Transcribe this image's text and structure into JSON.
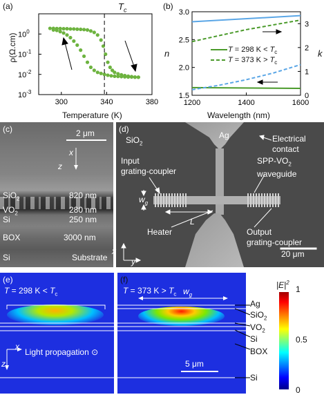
{
  "panel_a": {
    "letter": "(a)",
    "tc_label": "T",
    "tc_sub": "c",
    "xlabel": "Temperature (K)",
    "ylabel": "ρ(Ω.cm)",
    "xticks": [
      "300",
      "340",
      "380"
    ],
    "yticks": [
      {
        "base": "10",
        "exp": "0"
      },
      {
        "base": "10",
        "exp": "-1"
      },
      {
        "base": "10",
        "exp": "-2"
      },
      {
        "base": "10",
        "exp": "-3"
      }
    ]
  },
  "panel_b": {
    "letter": "(b)",
    "xlabel": "Wavelength (nm)",
    "ylabel_left": "n",
    "ylabel_right": "k",
    "xticks": [
      "1200",
      "1400",
      "1600"
    ],
    "yticks_left": [
      "1.5",
      "2.0",
      "2.5",
      "3.0"
    ],
    "yticks_right": [
      "0",
      "1",
      "2",
      "3"
    ],
    "legend": [
      {
        "prefix": "T",
        "text": " = 298 K < ",
        "suffix": "T",
        "sub": "c"
      },
      {
        "prefix": "T",
        "text": " = 373 K > ",
        "suffix": "T",
        "sub": "c"
      }
    ]
  },
  "panel_c": {
    "letter": "(c)",
    "scale": "2 μm",
    "axis_x": "x",
    "axis_z": "z",
    "layers": [
      {
        "name": "SiO",
        "sub": "2",
        "thickness": "820 nm"
      },
      {
        "name": "VO",
        "sub": "2",
        "thickness": "280 nm"
      },
      {
        "name": "Si",
        "sub": "",
        "thickness": "250 nm"
      },
      {
        "name": "BOX",
        "sub": "",
        "thickness": "3000 nm"
      },
      {
        "name": "Si",
        "sub": "",
        "thickness": "Substrate"
      }
    ]
  },
  "panel_d": {
    "letter": "(d)",
    "sio2": "SiO",
    "sio2_sub": "2",
    "ag": "Ag",
    "electrical_contact": [
      "Electrical",
      "contact"
    ],
    "input_coupler": [
      "Input",
      "grating-coupler"
    ],
    "waveguide": [
      "SPP-VO",
      "waveguide"
    ],
    "waveguide_sub": "2",
    "wg": "w",
    "wg_sub": "g",
    "length": "L",
    "heater": "Heater",
    "output_coupler": [
      "Output",
      "grating-coupler"
    ],
    "axis_x": "x",
    "axis_y": "y",
    "scale": "20 μm"
  },
  "panel_e": {
    "letter": "(e)",
    "title_prefix": "T",
    "title_text": " = 298 K < ",
    "title_suffix": "T",
    "title_sub": "c",
    "axis_x": "x",
    "axis_z": "z",
    "propagation": "Light propagation ⊙"
  },
  "panel_f": {
    "letter": "(f)",
    "title_prefix": "T",
    "title_text": " = 373 K > ",
    "title_suffix": "T",
    "title_sub": "c",
    "wg": "w",
    "wg_sub": "g",
    "scale": "5 μm",
    "layers": [
      {
        "name": "Ag",
        "sub": ""
      },
      {
        "name": "SiO",
        "sub": "2"
      },
      {
        "name": "VO",
        "sub": "2"
      },
      {
        "name": "Si",
        "sub": ""
      },
      {
        "name": "BOX",
        "sub": ""
      },
      {
        "name": "Si",
        "sub": ""
      }
    ]
  },
  "colorbar": {
    "label": "|E|",
    "label_sup": "2",
    "ticks": [
      "1",
      "0.5",
      "0"
    ]
  },
  "colors": {
    "green": "#6db33f",
    "dark_green": "#4a9a2a",
    "blue_line": "#5aa6e6",
    "field_bg": "#1d2fe0"
  },
  "chart_data": [
    {
      "type": "scatter",
      "panel": "a",
      "xlabel": "Temperature (K)",
      "ylabel": "ρ(Ω.cm)",
      "xlim": [
        280,
        380
      ],
      "ylim_log10": [
        -3,
        1
      ],
      "yscale": "log",
      "vline_x": 338,
      "series": [
        {
          "x": [
            290,
            293,
            296,
            299,
            302,
            305,
            308,
            311,
            314,
            317,
            320,
            323,
            326,
            329,
            332,
            335,
            337,
            339,
            341,
            343,
            345,
            347,
            350,
            353,
            356,
            359,
            362,
            365,
            368
          ],
          "y_log10": [
            0.28,
            0.28,
            0.27,
            0.27,
            0.26,
            0.26,
            0.25,
            0.25,
            0.24,
            0.23,
            0.22,
            0.2,
            0.15,
            0.08,
            -0.05,
            -0.3,
            -0.6,
            -1.0,
            -1.4,
            -1.65,
            -1.8,
            -1.9,
            -1.97,
            -2.02,
            -2.06,
            -2.09,
            -2.11,
            -2.13,
            -2.14
          ]
        },
        {
          "x": [
            293,
            296,
            299,
            302,
            305,
            308,
            311,
            314,
            317,
            320,
            323,
            326,
            329,
            332,
            335,
            338,
            341,
            344,
            347,
            350,
            353,
            356,
            359,
            362,
            365,
            368
          ],
          "y_log10": [
            0.2,
            0.18,
            0.12,
            0.05,
            -0.05,
            -0.18,
            -0.35,
            -0.55,
            -0.8,
            -1.1,
            -1.4,
            -1.65,
            -1.8,
            -1.9,
            -1.95,
            -2.0,
            -2.04,
            -2.07,
            -2.09,
            -2.1,
            -2.11,
            -2.12,
            -2.13,
            -2.13,
            -2.14,
            -2.14
          ]
        }
      ],
      "annotations": [
        "arrow up near 305 K",
        "arrow down near 352 K"
      ]
    },
    {
      "type": "line",
      "panel": "b",
      "xlabel": "Wavelength (nm)",
      "ylabel_left": "n",
      "ylabel_right": "k",
      "xlim": [
        1200,
        1600
      ],
      "ylim_left": [
        1.5,
        3.0
      ],
      "ylim_right": [
        0,
        3.5
      ],
      "series": [
        {
          "name": "T = 298 K < Tc (n)",
          "axis": "left",
          "style": "solid",
          "color": "#5aa6e6",
          "x": [
            1200,
            1600
          ],
          "y": [
            2.82,
            2.93
          ]
        },
        {
          "name": "T = 298 K < Tc (k)",
          "axis": "right",
          "style": "solid",
          "color": "#4a9a2a",
          "x": [
            1200,
            1600
          ],
          "y": [
            0.32,
            0.29
          ]
        },
        {
          "name": "T = 373 K > Tc (n)",
          "axis": "left",
          "style": "dashed",
          "color": "#5aa6e6",
          "x": [
            1200,
            1300,
            1400,
            1500,
            1600
          ],
          "y": [
            1.6,
            1.68,
            1.78,
            1.9,
            2.05
          ]
        },
        {
          "name": "T = 373 K > Tc (k)",
          "axis": "right",
          "style": "dashed",
          "color": "#4a9a2a",
          "x": [
            1200,
            1300,
            1400,
            1500,
            1600
          ],
          "y": [
            2.25,
            2.5,
            2.75,
            2.95,
            3.15
          ]
        }
      ]
    }
  ]
}
